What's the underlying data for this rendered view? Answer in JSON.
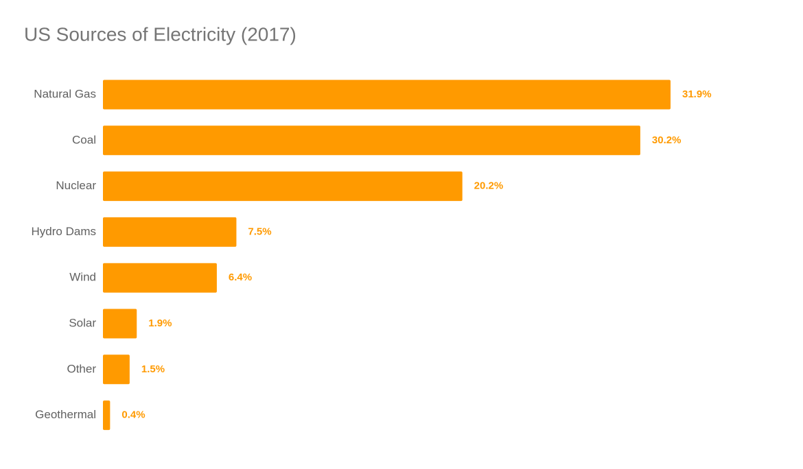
{
  "chart_data": {
    "type": "bar",
    "orientation": "horizontal",
    "title": "US Sources of Electricity (2017)",
    "categories": [
      "Natural Gas",
      "Coal",
      "Nuclear",
      "Hydro Dams",
      "Wind",
      "Solar",
      "Other",
      "Geothermal"
    ],
    "values": [
      31.9,
      30.2,
      20.2,
      7.5,
      6.4,
      1.9,
      1.5,
      0.4
    ],
    "value_labels": [
      "31.9%",
      "30.2%",
      "20.2%",
      "7.5%",
      "6.4%",
      "1.9%",
      "1.5%",
      "0.4%"
    ],
    "color": "#ff9a00"
  }
}
